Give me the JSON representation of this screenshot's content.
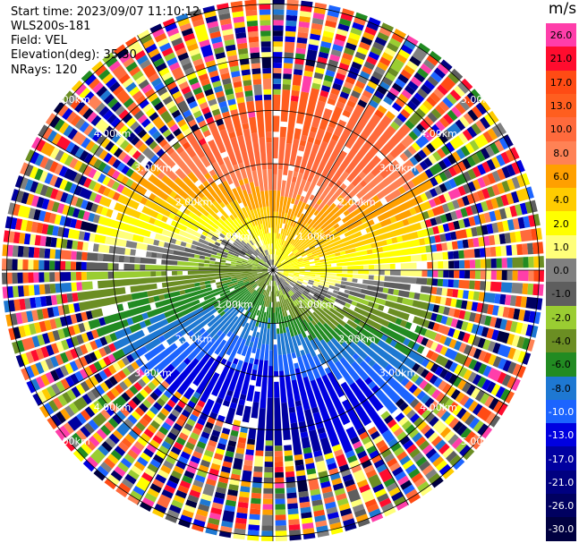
{
  "info": {
    "start_time": "Start time: 2023/09/07 11:10:12",
    "station": "WLS200s-181",
    "field": "Field: VEL",
    "elevation": "Elevation(deg): 35.30",
    "nrays": "NRays: 120"
  },
  "chart_data": {
    "type": "heatmap",
    "projection": "polar PPI",
    "field": "VEL",
    "nrays": 120,
    "elevation_deg": 35.3,
    "range_rings": [
      {
        "range_km": 1.0,
        "label": "1.00km"
      },
      {
        "range_km": 2.0,
        "label": "2.00km"
      },
      {
        "range_km": 3.0,
        "label": "3.00km"
      },
      {
        "range_km": 4.0,
        "label": "4.00km"
      },
      {
        "range_km": 5.0,
        "label": "5.00km"
      }
    ],
    "max_range_km": 5.3,
    "wind_profile": "approaching from south (negative), receding to north (positive); noisy outside ~3 km",
    "colorbar": {
      "unit": "m/s",
      "levels": [
        {
          "label": "26.0",
          "color": "#ff3eaa"
        },
        {
          "label": "21.0",
          "color": "#ff0c2e"
        },
        {
          "label": "17.0",
          "color": "#ff4b14"
        },
        {
          "label": "13.0",
          "color": "#ff5e1f"
        },
        {
          "label": "10.0",
          "color": "#ff6a3c"
        },
        {
          "label": "8.0",
          "color": "#ff8255"
        },
        {
          "label": "6.0",
          "color": "#ffa000"
        },
        {
          "label": "4.0",
          "color": "#ffcc00"
        },
        {
          "label": "2.0",
          "color": "#ffff00"
        },
        {
          "label": "1.0",
          "color": "#ffff7a"
        },
        {
          "label": "0.0",
          "color": "#808080"
        },
        {
          "label": "-1.0",
          "color": "#5e5e5e"
        },
        {
          "label": "-2.0",
          "color": "#9acd32"
        },
        {
          "label": "-4.0",
          "color": "#6b8e23"
        },
        {
          "label": "-6.0",
          "color": "#228b22"
        },
        {
          "label": "-8.0",
          "color": "#1e78d2"
        },
        {
          "label": "-10.0",
          "color": "#1c64ff"
        },
        {
          "label": "-13.0",
          "color": "#0000e0"
        },
        {
          "label": "-17.0",
          "color": "#0000a0"
        },
        {
          "label": "-21.0",
          "color": "#000080"
        },
        {
          "label": "-26.0",
          "color": "#000060"
        },
        {
          "label": "-30.0",
          "color": "#000040"
        }
      ]
    }
  }
}
